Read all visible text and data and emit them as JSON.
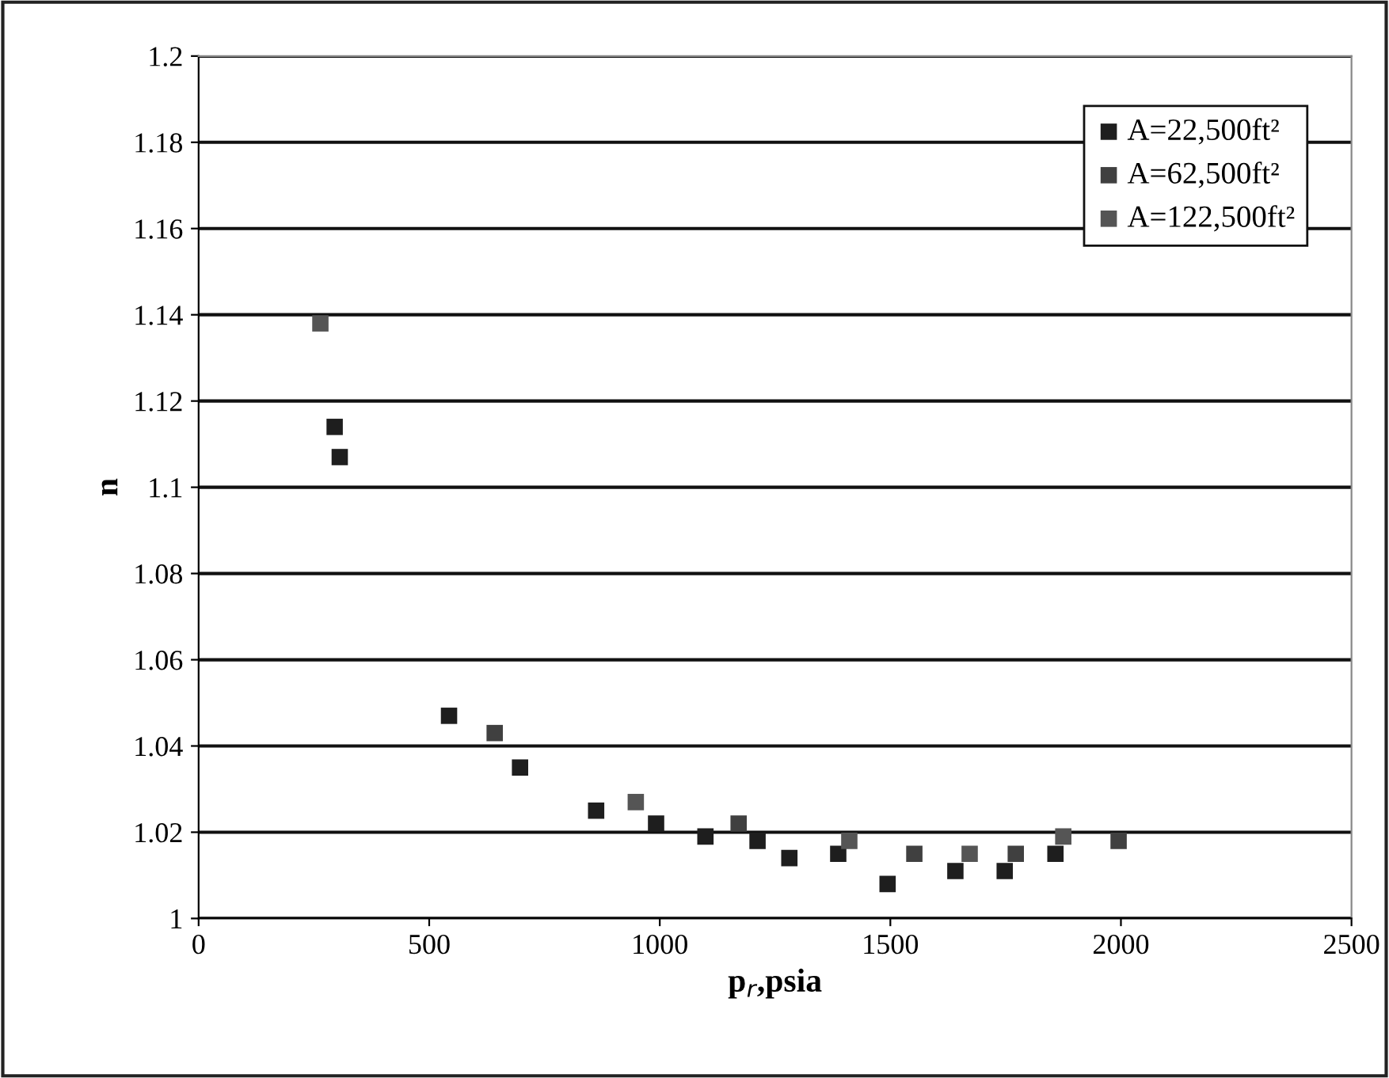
{
  "chart_data": {
    "type": "scatter",
    "xlabel": "p$_{r}$,psia",
    "ylabel": "n",
    "xlim": [
      0,
      2500
    ],
    "ylim": [
      1,
      1.2
    ],
    "xticks": [
      0,
      500,
      1000,
      1500,
      2000,
      2500
    ],
    "yticks": [
      1,
      1.02,
      1.04,
      1.06,
      1.08,
      1.1,
      1.12,
      1.14,
      1.16,
      1.18,
      1.2
    ],
    "grid": "y",
    "legend": "top right",
    "marker": "square",
    "series": [
      {
        "name": "A=22,500ft²",
        "color": "#1e1e1e",
        "x": [
          295,
          306,
          543,
          697,
          862,
          992,
          1099,
          1212,
          1281,
          1387,
          1494,
          1641,
          1748,
          1858
        ],
        "values": [
          1.114,
          1.107,
          1.047,
          1.035,
          1.025,
          1.022,
          1.019,
          1.018,
          1.014,
          1.015,
          1.008,
          1.011,
          1.011,
          1.015
        ]
      },
      {
        "name": "A=62,500ft²",
        "color": "#404040",
        "x": [
          642,
          1171,
          1552,
          1772,
          1995
        ],
        "values": [
          1.043,
          1.022,
          1.015,
          1.015,
          1.018
        ]
      },
      {
        "name": "A=122,500ft²",
        "color": "#555555",
        "x": [
          264,
          948,
          1411,
          1672,
          1875
        ],
        "values": [
          1.138,
          1.027,
          1.018,
          1.015,
          1.019
        ]
      }
    ]
  }
}
